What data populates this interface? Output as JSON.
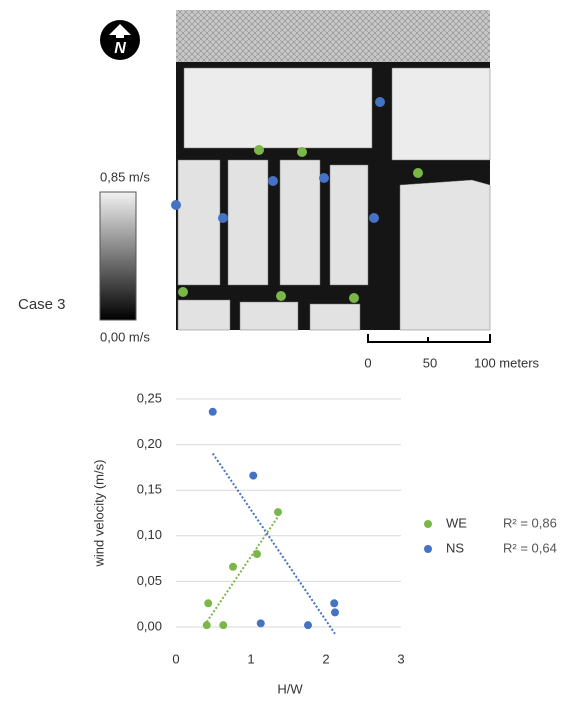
{
  "figure": {
    "north_label": "N",
    "colorbar_max": "0,85 m/s",
    "colorbar_min": "0,00 m/s",
    "case_label": "Case 3",
    "scale_labels": [
      "0",
      "50",
      "100 meters"
    ]
  },
  "chart_data": {
    "type": "scatter",
    "x_label": "H/W",
    "y_label": "wind velocity (m/s)",
    "xlim": [
      0,
      3
    ],
    "xticks": [
      0,
      1,
      2,
      3
    ],
    "ylim": [
      0,
      0.25
    ],
    "yticks": [
      {
        "value": 0,
        "label": "0,00"
      },
      {
        "value": 0.05,
        "label": "0,05"
      },
      {
        "value": 0.1,
        "label": "0,10"
      },
      {
        "value": 0.15,
        "label": "0,15"
      },
      {
        "value": 0.2,
        "label": "0,20"
      },
      {
        "value": 0.25,
        "label": "0,25"
      }
    ],
    "grid": true,
    "trendline": true,
    "legend": "right",
    "series": [
      {
        "name": "WE",
        "color": "#7ab648",
        "x": [
          0.43,
          0.41,
          0.63,
          0.76,
          1.08,
          1.36
        ],
        "values": [
          0.026,
          0.002,
          0.002,
          0.066,
          0.08,
          0.126
        ],
        "r2_label": "R² = 0,86"
      },
      {
        "name": "NS",
        "color": "#4472c4",
        "x": [
          0.49,
          1.03,
          1.13,
          1.76,
          2.11,
          2.12
        ],
        "values": [
          0.236,
          0.166,
          0.004,
          0.002,
          0.026,
          0.016
        ],
        "r2_label": "R² = 0,64"
      }
    ]
  }
}
